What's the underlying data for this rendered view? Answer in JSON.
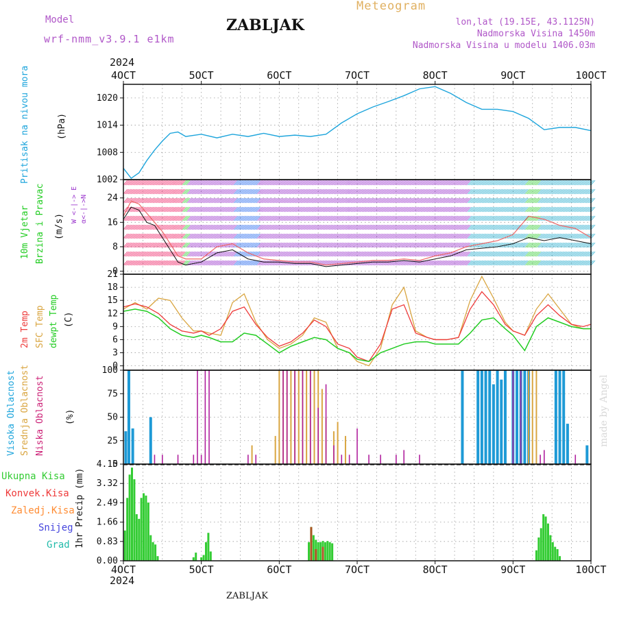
{
  "header": {
    "model_label": "Model",
    "model_name": "wrf-nmm_v3.9.1  e1km",
    "station": "ZABLJAK",
    "title": "Meteogram",
    "coords": "lon,lat (19.15E, 43.1125N)",
    "elevation": "Nadmorska Visina 1450m",
    "model_elevation": "Nadmorska Visina u modelu 1406.03m"
  },
  "footer": {
    "station": "ZABLJAK",
    "watermark": "made by Angel"
  },
  "time_axis": {
    "year": "2024",
    "ticks": [
      "4OCT",
      "5OCT",
      "6OCT",
      "7OCT",
      "8OCT",
      "9OCT",
      "10OCT"
    ],
    "days": [
      4,
      5,
      6,
      7,
      8,
      9,
      10
    ]
  },
  "colors": {
    "pressure": "#1ea5dc",
    "temp2m": "#ee3a3a",
    "sfc_temp": "#d9a540",
    "dewpoint": "#22cc22",
    "cloud_high": "#1e9ad6",
    "cloud_mid": "#d9a540",
    "cloud_low": "#b0219e",
    "precip_total": "#33cc33",
    "precip_conv": "#ee3a3a",
    "precip_frozen": "#ff8c33",
    "snow": "#4444dd",
    "hail": "#22bbaa",
    "wind_label": "#22cc22",
    "wind_dir": "#9933cc"
  },
  "panels": {
    "pressure": {
      "labels": [
        "Pritisak na nivou mora",
        "(hPa)"
      ]
    },
    "wind": {
      "labels": [
        "10m Vjetar",
        "Brzina i Pravac",
        "(m/s)"
      ],
      "dir_label": "W <-|-> E",
      "dir_sub": "α<-|->N"
    },
    "temperature": {
      "labels": [
        "2m Temp",
        "SFC Temp",
        "dewpt Temp",
        "(C)"
      ]
    },
    "cloud": {
      "labels": [
        "Visoka Oblacnost",
        "Srednja Oblacnost",
        "Niska Oblacnost",
        "(%)"
      ]
    },
    "precip": {
      "legend": [
        "Ukupna Kisa",
        "Konvek.Kisa",
        "Zaledj.Kisa",
        "Snijeg",
        "Grad"
      ],
      "ylabel": "1hr Precip (mm)"
    }
  },
  "chart_data": [
    {
      "type": "line",
      "name": "pressure",
      "ylabel": "(hPa)",
      "ylim": [
        1002,
        1023
      ],
      "yticks": [
        1002,
        1008,
        1014,
        1020
      ],
      "x": [
        4.0,
        4.1,
        4.2,
        4.3,
        4.4,
        4.5,
        4.6,
        4.7,
        4.8,
        5.0,
        5.2,
        5.4,
        5.6,
        5.8,
        6.0,
        6.2,
        6.4,
        6.6,
        6.8,
        7.0,
        7.2,
        7.4,
        7.6,
        7.8,
        8.0,
        8.2,
        8.4,
        8.6,
        8.8,
        9.0,
        9.2,
        9.4,
        9.6,
        9.8,
        10.0
      ],
      "series": [
        {
          "values": [
            1004.5,
            1002.3,
            1003.5,
            1006.2,
            1008.5,
            1010.5,
            1012.2,
            1012.5,
            1011.5,
            1012.0,
            1011.2,
            1012.0,
            1011.5,
            1012.2,
            1011.5,
            1011.8,
            1011.5,
            1012.0,
            1014.5,
            1016.5,
            1018.0,
            1019.2,
            1020.5,
            1022.0,
            1022.5,
            1021.0,
            1019.0,
            1017.5,
            1017.5,
            1017.0,
            1015.5,
            1013.0,
            1013.5,
            1013.5,
            1012.8
          ]
        }
      ],
      "grid": true
    },
    {
      "type": "line",
      "name": "wind",
      "ylabel": "(m/s)",
      "ylim": [
        -1,
        30
      ],
      "yticks": [
        0,
        8,
        16,
        24
      ],
      "x": [
        4.0,
        4.1,
        4.2,
        4.3,
        4.4,
        4.5,
        4.6,
        4.7,
        4.8,
        5.0,
        5.2,
        5.4,
        5.6,
        5.8,
        6.0,
        6.2,
        6.4,
        6.6,
        6.8,
        7.0,
        7.2,
        7.4,
        7.6,
        7.8,
        8.0,
        8.2,
        8.4,
        8.6,
        8.8,
        9.0,
        9.2,
        9.4,
        9.6,
        9.8,
        10.0
      ],
      "series": [
        {
          "values": [
            17,
            21,
            20,
            16,
            15,
            11,
            7,
            3,
            2,
            3,
            6,
            7,
            4,
            3,
            3,
            2.5,
            2.5,
            1.5,
            2,
            2.5,
            3,
            3,
            3.5,
            3,
            4,
            5,
            7,
            7.5,
            8,
            9,
            11,
            10,
            11,
            10,
            9
          ]
        },
        {
          "values": [
            18,
            23,
            22,
            19,
            16,
            13,
            9,
            5,
            4,
            4,
            8,
            9,
            6,
            4,
            3.5,
            3,
            3,
            2,
            2.5,
            3,
            3.5,
            3.5,
            4,
            3.5,
            5,
            6,
            8,
            9,
            10,
            12,
            18,
            17,
            15,
            14,
            11
          ]
        }
      ],
      "grid": true
    },
    {
      "type": "line",
      "name": "temperature",
      "ylabel": "(C)",
      "ylim": [
        -1,
        21
      ],
      "yticks": [
        0,
        3,
        6,
        9,
        12,
        15,
        18,
        21
      ],
      "x": [
        4.0,
        4.15,
        4.3,
        4.45,
        4.6,
        4.75,
        4.9,
        5.0,
        5.1,
        5.25,
        5.4,
        5.55,
        5.7,
        5.85,
        6.0,
        6.15,
        6.3,
        6.45,
        6.6,
        6.75,
        6.9,
        7.0,
        7.15,
        7.3,
        7.45,
        7.6,
        7.75,
        7.9,
        8.0,
        8.15,
        8.3,
        8.45,
        8.6,
        8.75,
        8.9,
        9.0,
        9.15,
        9.3,
        9.45,
        9.6,
        9.75,
        9.9,
        10.0
      ],
      "series": [
        {
          "values": [
            13.5,
            14.2,
            13.5,
            12.0,
            9.5,
            8.0,
            7.5,
            8.0,
            7.0,
            8.5,
            12.5,
            13.5,
            9.5,
            6.5,
            4.5,
            5.5,
            7.5,
            10.5,
            9.0,
            5.0,
            4.0,
            2.0,
            1.0,
            5.0,
            13.0,
            14.0,
            7.5,
            6.5,
            6.0,
            6.0,
            6.5,
            13.0,
            17.0,
            14.0,
            9.5,
            8.0,
            7.0,
            11.5,
            14.0,
            11.5,
            9.5,
            9.0,
            9.5
          ]
        },
        {
          "values": [
            13.0,
            14.5,
            13.0,
            15.5,
            15.0,
            11.0,
            8.0,
            8.0,
            7.5,
            7.0,
            14.5,
            16.5,
            10.0,
            6.0,
            4.0,
            5.0,
            7.0,
            11.0,
            10.0,
            4.0,
            3.0,
            1.0,
            0.0,
            4.0,
            14.0,
            18.0,
            8.0,
            6.5,
            6.0,
            6.0,
            6.5,
            15.0,
            20.5,
            15.5,
            10.0,
            8.0,
            7.0,
            13.0,
            16.5,
            13.0,
            9.5,
            8.5,
            8.5
          ]
        },
        {
          "values": [
            12.5,
            13.0,
            12.5,
            11.0,
            8.5,
            7.0,
            6.5,
            7.0,
            6.5,
            5.5,
            5.5,
            7.5,
            7.0,
            5.0,
            3.0,
            4.5,
            5.5,
            6.5,
            6.0,
            4.0,
            3.0,
            1.5,
            1.0,
            3.0,
            4.0,
            5.0,
            5.5,
            5.5,
            5.0,
            5.0,
            5.0,
            7.5,
            10.5,
            11.0,
            8.5,
            7.0,
            3.5,
            9.0,
            11.0,
            10.0,
            9.0,
            8.5,
            8.5
          ]
        }
      ],
      "grid": true
    },
    {
      "type": "bar",
      "name": "cloud",
      "ylabel": "(%)",
      "ylim": [
        0,
        100
      ],
      "yticks": [
        0,
        25,
        50,
        75,
        100
      ],
      "series": [
        {
          "values": [
            [
              4.03,
              35
            ],
            [
              4.07,
              100
            ],
            [
              4.12,
              38
            ],
            [
              4.35,
              50
            ],
            [
              8.35,
              100
            ],
            [
              8.55,
              100
            ],
            [
              8.6,
              100
            ],
            [
              8.65,
              100
            ],
            [
              8.7,
              100
            ],
            [
              8.75,
              85
            ],
            [
              8.8,
              100
            ],
            [
              8.85,
              90
            ],
            [
              8.9,
              100
            ],
            [
              9.0,
              100
            ],
            [
              9.05,
              100
            ],
            [
              9.1,
              100
            ],
            [
              9.15,
              100
            ],
            [
              9.2,
              100
            ],
            [
              9.55,
              100
            ],
            [
              9.6,
              100
            ],
            [
              9.65,
              100
            ],
            [
              9.7,
              43
            ],
            [
              9.95,
              20
            ]
          ]
        },
        {
          "values": [
            [
              5.65,
              20
            ],
            [
              5.95,
              30
            ],
            [
              6.0,
              100
            ],
            [
              6.05,
              100
            ],
            [
              6.1,
              100
            ],
            [
              6.15,
              100
            ],
            [
              6.2,
              100
            ],
            [
              6.25,
              100
            ],
            [
              6.3,
              100
            ],
            [
              6.35,
              100
            ],
            [
              6.4,
              100
            ],
            [
              6.45,
              100
            ],
            [
              6.5,
              100
            ],
            [
              6.55,
              80
            ],
            [
              6.6,
              50
            ],
            [
              6.7,
              35
            ],
            [
              6.75,
              45
            ],
            [
              6.85,
              30
            ],
            [
              9.2,
              100
            ],
            [
              9.25,
              100
            ],
            [
              9.3,
              100
            ]
          ]
        },
        {
          "values": [
            [
              4.4,
              10
            ],
            [
              4.5,
              10
            ],
            [
              4.7,
              10
            ],
            [
              4.9,
              10
            ],
            [
              4.95,
              100
            ],
            [
              5.0,
              10
            ],
            [
              5.05,
              100
            ],
            [
              5.1,
              100
            ],
            [
              5.6,
              10
            ],
            [
              5.7,
              10
            ],
            [
              6.05,
              100
            ],
            [
              6.1,
              100
            ],
            [
              6.2,
              100
            ],
            [
              6.3,
              100
            ],
            [
              6.4,
              100
            ],
            [
              6.5,
              60
            ],
            [
              6.6,
              85
            ],
            [
              6.7,
              20
            ],
            [
              6.8,
              10
            ],
            [
              6.9,
              10
            ],
            [
              7.0,
              38
            ],
            [
              7.15,
              10
            ],
            [
              7.3,
              10
            ],
            [
              7.5,
              10
            ],
            [
              7.6,
              15
            ],
            [
              7.8,
              10
            ],
            [
              9.0,
              100
            ],
            [
              9.1,
              100
            ],
            [
              9.35,
              10
            ],
            [
              9.4,
              15
            ],
            [
              9.8,
              10
            ]
          ]
        }
      ],
      "grid": true
    },
    {
      "type": "bar",
      "name": "precip",
      "ylabel": "1hr Precip (mm)",
      "ylim": [
        0,
        4.15
      ],
      "yticks": [
        0,
        0.83,
        1.66,
        2.49,
        3.32,
        4.15
      ],
      "series": [
        {
          "values": [
            [
              4.02,
              1.3
            ],
            [
              4.05,
              2.7
            ],
            [
              4.08,
              3.7
            ],
            [
              4.11,
              4.0
            ],
            [
              4.14,
              3.5
            ],
            [
              4.17,
              2.0
            ],
            [
              4.2,
              1.8
            ],
            [
              4.23,
              2.7
            ],
            [
              4.26,
              2.9
            ],
            [
              4.29,
              2.8
            ],
            [
              4.32,
              2.5
            ],
            [
              4.35,
              1.1
            ],
            [
              4.38,
              0.8
            ],
            [
              4.41,
              0.7
            ],
            [
              4.44,
              0.2
            ],
            [
              4.9,
              0.15
            ],
            [
              4.93,
              0.35
            ],
            [
              5.0,
              0.15
            ],
            [
              5.03,
              0.25
            ],
            [
              5.06,
              0.8
            ],
            [
              5.09,
              1.2
            ],
            [
              5.12,
              0.4
            ],
            [
              6.38,
              0.8
            ],
            [
              6.41,
              1.45
            ],
            [
              6.44,
              1.1
            ],
            [
              6.47,
              0.9
            ],
            [
              6.5,
              0.8
            ],
            [
              6.53,
              0.8
            ],
            [
              6.56,
              0.85
            ],
            [
              6.59,
              0.8
            ],
            [
              6.62,
              0.85
            ],
            [
              6.65,
              0.8
            ],
            [
              6.68,
              0.75
            ],
            [
              9.3,
              0.45
            ],
            [
              9.33,
              1.0
            ],
            [
              9.36,
              1.4
            ],
            [
              9.39,
              2.0
            ],
            [
              9.42,
              1.9
            ],
            [
              9.45,
              1.6
            ],
            [
              9.48,
              1.1
            ],
            [
              9.51,
              0.8
            ],
            [
              9.54,
              0.6
            ],
            [
              9.57,
              0.5
            ],
            [
              9.6,
              0.2
            ]
          ]
        },
        {
          "values": [
            [
              6.41,
              1.45
            ],
            [
              6.47,
              0.5
            ],
            [
              6.56,
              0.6
            ]
          ]
        }
      ],
      "grid": true
    }
  ]
}
